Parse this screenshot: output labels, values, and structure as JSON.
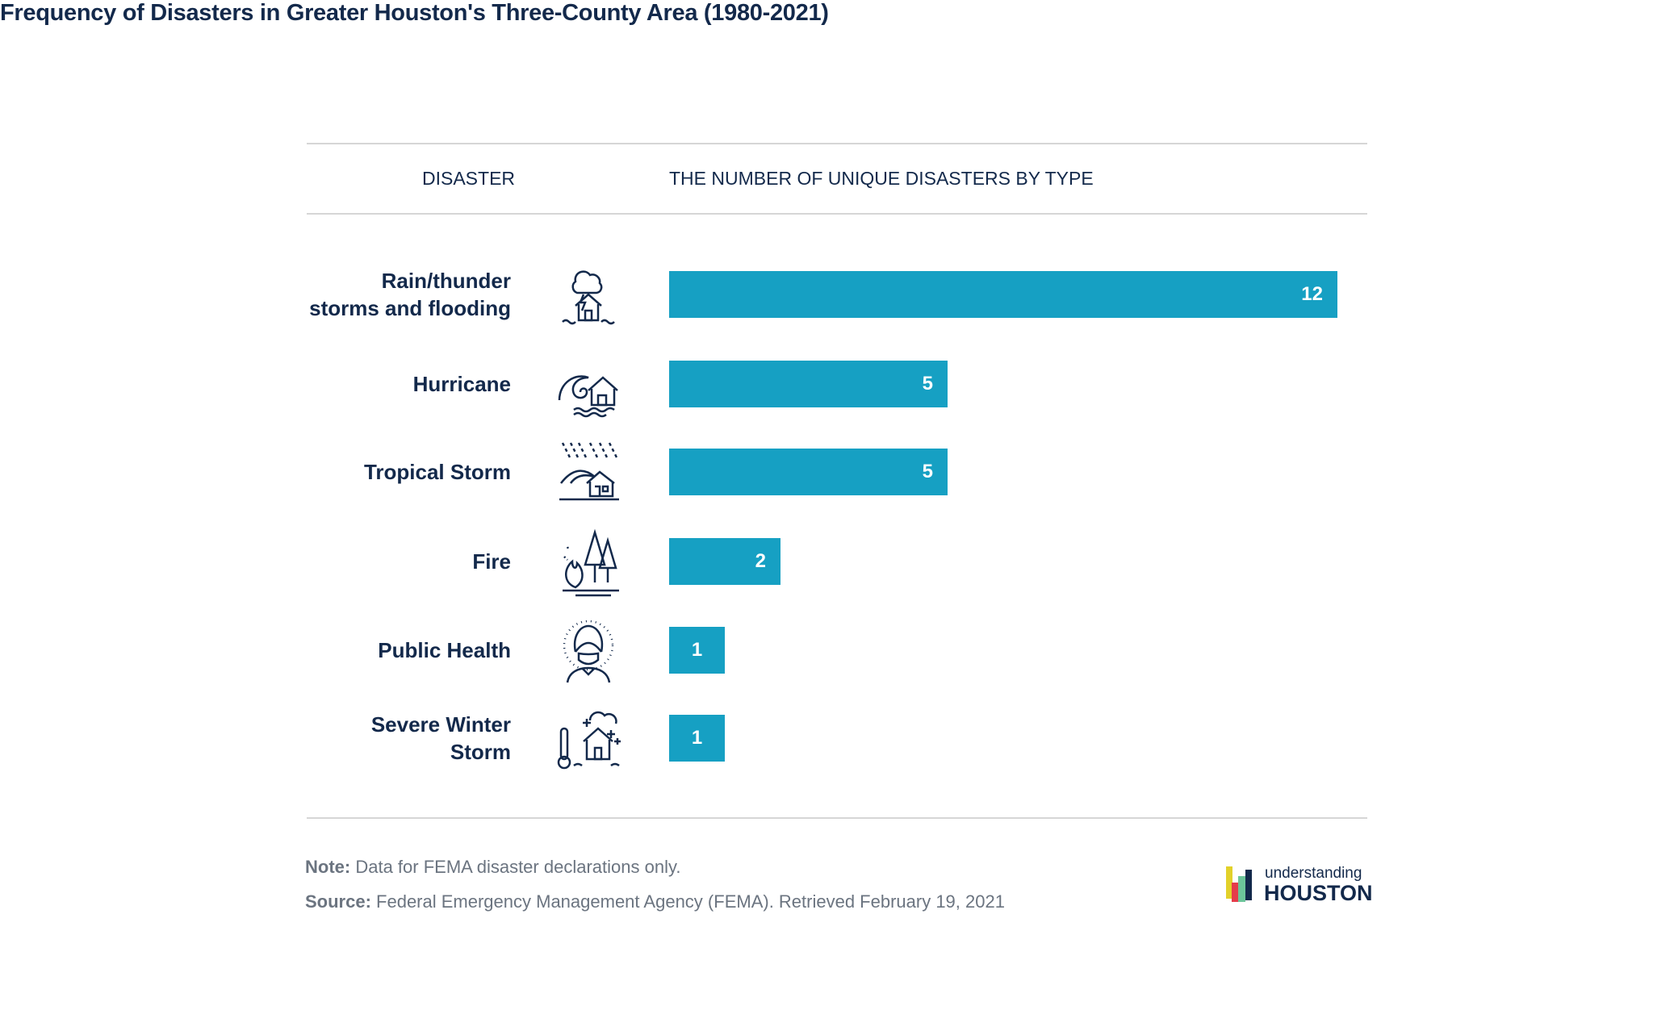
{
  "title": "Frequency of Disasters in Greater Houston's Three-County Area (1980-2021)",
  "headers": {
    "disaster": "DISASTER",
    "count": "THE NUMBER OF UNIQUE DISASTERS BY TYPE"
  },
  "chart_data": {
    "type": "bar",
    "orientation": "horizontal",
    "categories": [
      "Rain/thunder storms and flooding",
      "Hurricane",
      "Tropical Storm",
      "Fire",
      "Public Health",
      "Severe Winter Storm"
    ],
    "values": [
      12,
      5,
      5,
      2,
      1,
      1
    ],
    "icons": [
      "storm-flood-house-icon",
      "hurricane-wave-house-icon",
      "tropical-storm-house-icon",
      "forest-fire-icon",
      "masked-person-icon",
      "winter-storm-thermometer-house-icon"
    ],
    "bar_color": "#16a0c3",
    "data_labels": true,
    "xlim": [
      0,
      12
    ],
    "grid": false
  },
  "labels_display": [
    "Rain/thunder\nstorms and flooding",
    "Hurricane",
    "Tropical Storm",
    "Fire",
    "Public Health",
    "Severe Winter\nStorm"
  ],
  "note": {
    "label": "Note:",
    "text": " Data for FEMA disaster declarations only."
  },
  "source": {
    "label": "Source:",
    "text": " Federal Emergency Management Agency (FEMA). Retrieved February 19, 2021"
  },
  "logo": {
    "line1": "understanding",
    "line2": "HOUSTON"
  }
}
